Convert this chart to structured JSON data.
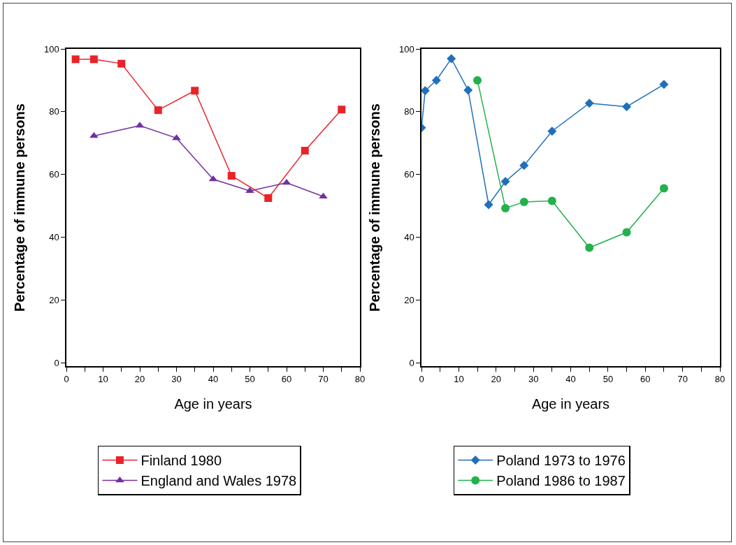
{
  "chart_data": [
    {
      "type": "line",
      "xlabel": "Age in years",
      "ylabel": "Percentage of immune persons",
      "xlim": [
        0,
        80
      ],
      "ylim": [
        -1,
        100
      ],
      "xticks": [
        0,
        {
          "value": 5,
          "label": null
        },
        10,
        {
          "value": 15,
          "label": null
        },
        20,
        {
          "value": 25,
          "label": null
        },
        30,
        {
          "value": 35,
          "label": null
        },
        40,
        {
          "value": 45,
          "label": null
        },
        50,
        {
          "value": 55,
          "label": null
        },
        60,
        {
          "value": 65,
          "label": null
        },
        70,
        {
          "value": 75,
          "label": null
        },
        80
      ],
      "yticks": [
        0,
        20,
        40,
        60,
        80,
        100
      ],
      "grid": false,
      "legend": "bottom",
      "line_style": "solid",
      "series": [
        {
          "name": "Finland 1980",
          "color": "#e8232a",
          "marker": "square",
          "x": [
            2.5,
            7.5,
            15,
            25,
            35,
            45,
            55,
            65,
            75
          ],
          "values": [
            96.7,
            96.7,
            95.3,
            80.5,
            86.7,
            59.6,
            52.5,
            67.6,
            80.7
          ]
        },
        {
          "name": "England and Wales 1978",
          "color": "#7030a0",
          "marker": "triangle",
          "x": [
            7.5,
            20,
            30,
            40,
            50,
            60,
            70
          ],
          "values": [
            72.3,
            75.6,
            71.6,
            58.5,
            54.8,
            57.4,
            53
          ]
        }
      ]
    },
    {
      "type": "line",
      "xlabel": "Age in years",
      "ylabel": "Percentage of immune persons",
      "xlim": [
        0,
        80
      ],
      "ylim": [
        -1,
        100
      ],
      "xticks": [
        0,
        {
          "value": 5,
          "label": null
        },
        10,
        {
          "value": 15,
          "label": null
        },
        20,
        {
          "value": 25,
          "label": null
        },
        30,
        {
          "value": 35,
          "label": null
        },
        40,
        {
          "value": 45,
          "label": null
        },
        50,
        {
          "value": 55,
          "label": null
        },
        60,
        {
          "value": 65,
          "label": null
        },
        70,
        {
          "value": 75,
          "label": null
        },
        80
      ],
      "yticks": [
        0,
        20,
        40,
        60,
        80,
        100
      ],
      "grid": false,
      "legend": "bottom",
      "line_style": "solid",
      "series": [
        {
          "name": "Poland 1973 to 1976",
          "color": "#1f6fba",
          "marker": "diamond",
          "x": [
            0,
            1,
            4,
            8,
            12.5,
            18,
            22.5,
            27.5,
            35,
            45,
            55,
            65
          ],
          "values": [
            74.9,
            86.7,
            90,
            96.9,
            86.9,
            50.4,
            57.8,
            62.9,
            73.8,
            82.7,
            81.6,
            88.7
          ]
        },
        {
          "name": "Poland 1986 to 1987",
          "color": "#22b14c",
          "marker": "circle",
          "x": [
            15,
            22.5,
            27.5,
            35,
            45,
            55,
            65
          ],
          "values": [
            90,
            49.3,
            51.3,
            51.6,
            36.7,
            41.6,
            55.6
          ]
        }
      ]
    }
  ]
}
